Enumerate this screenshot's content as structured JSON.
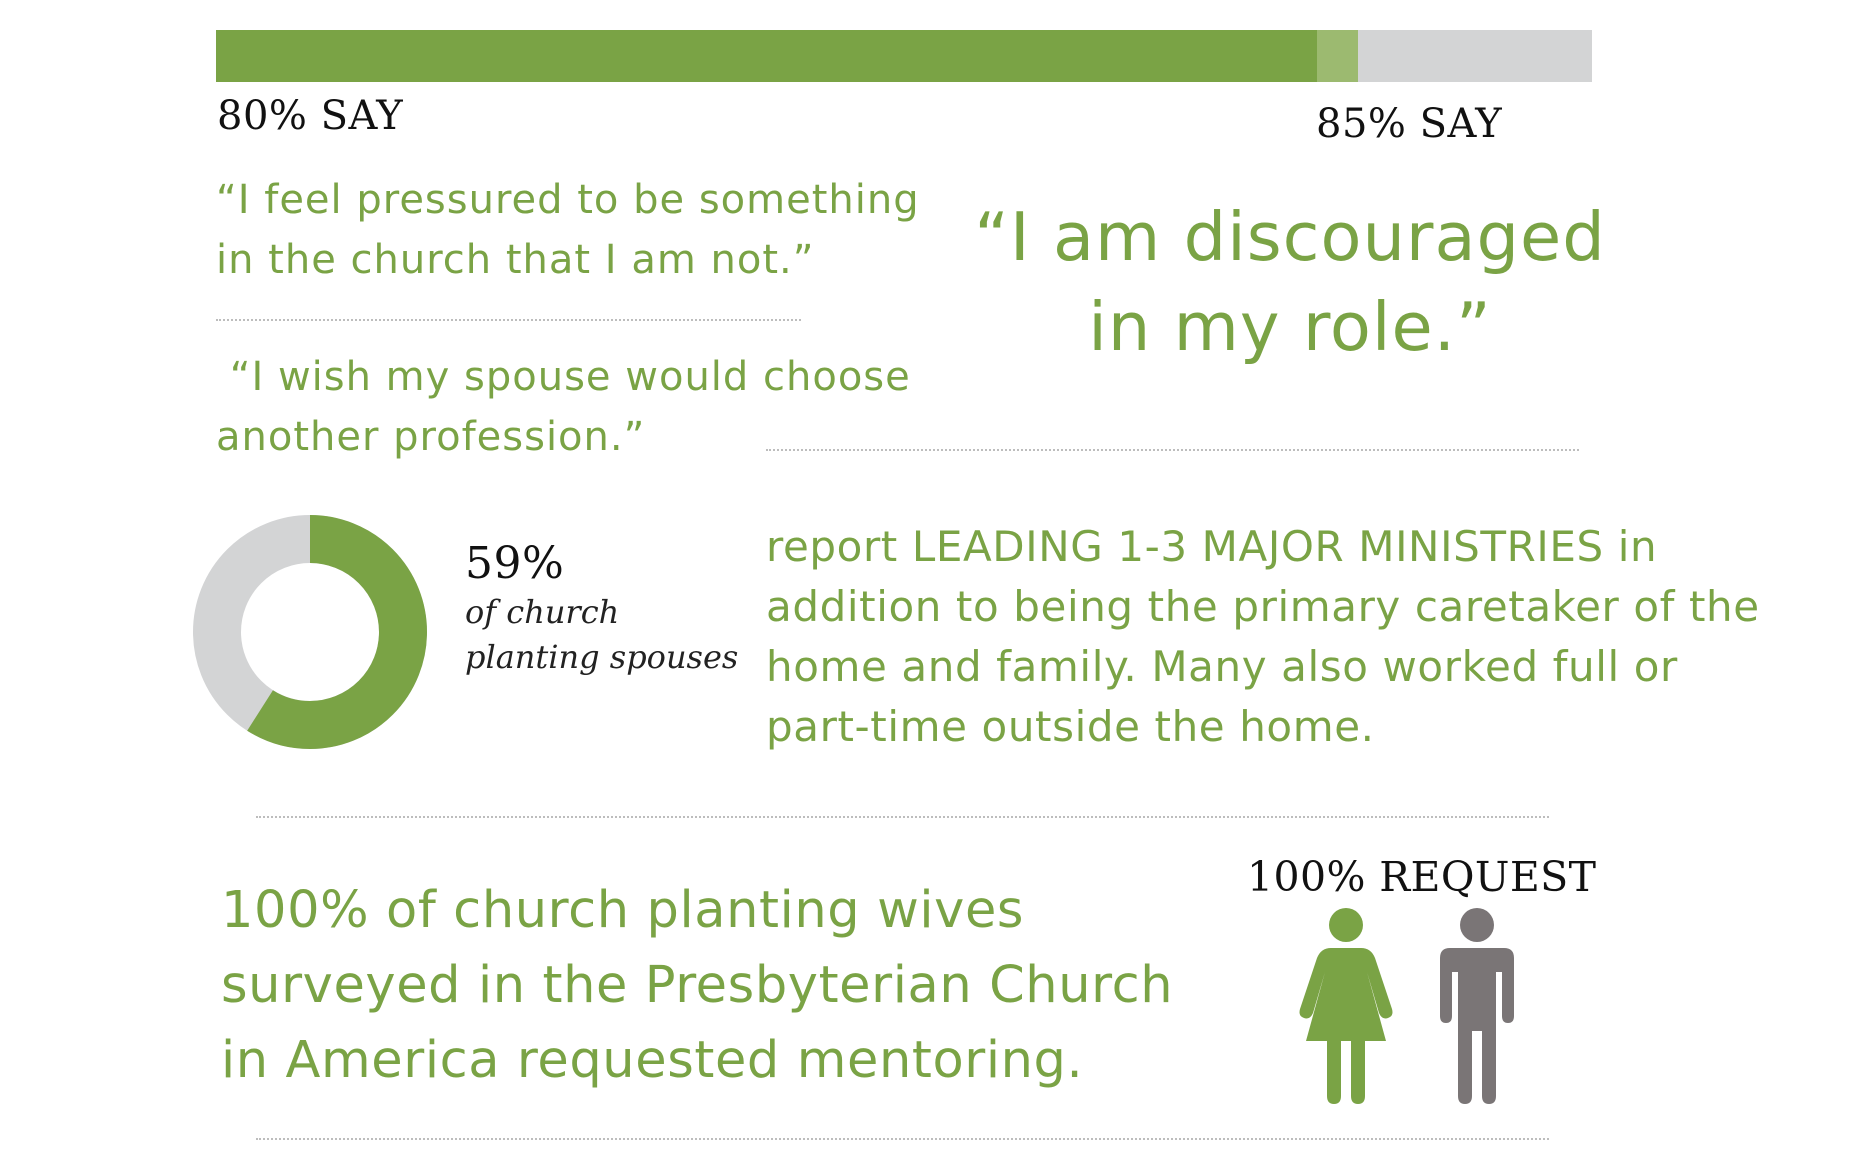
{
  "chart_data": [
    {
      "type": "bar",
      "values_percent": [
        80,
        85
      ],
      "labels": [
        "80% SAY",
        "85% SAY"
      ],
      "quotes": [
        "“I feel pressured to be something in the church that I am not.”",
        "“I wish my spouse would choose another profession.”",
        "“I am discouraged in my role.”"
      ]
    },
    {
      "type": "pie",
      "donut": true,
      "value_percent": 59,
      "value_label": "59%",
      "caption_line1": "of church",
      "caption_line2": "planting spouses",
      "description_parts": [
        "report ",
        "LEADING 1-3 MAJOR MINISTRIES",
        " in addition to being the primary caretaker of the home and family. Many also worked full or part-time outside the home."
      ]
    }
  ],
  "bar": {
    "label_80": "80% SAY",
    "label_85": "85% SAY",
    "fill_fraction": 0.8,
    "extra_fraction": 0.05
  },
  "quotes": {
    "q1_line1": "“I feel pressured to be something",
    "q1_line2": "in the church that I am not.”",
    "q2_line1": " “I wish my spouse would choose",
    "q2_line2": "another profession.”",
    "q3_line1": "“I am discouraged",
    "q3_line2": "in my role.”"
  },
  "donut": {
    "percent": 59,
    "label": "59%",
    "caption_line1": "of church",
    "caption_line2": "planting spouses"
  },
  "ministries": {
    "line1_pre": "report ",
    "line1_caps": "LEADING 1-3 MAJOR MINISTRIES",
    "line1_post": " in",
    "line2": "addition to being the primary caretaker of the",
    "line3": "home and family. Many also worked full or",
    "line4": "part-time outside the home."
  },
  "mentoring": {
    "line1": "100% of church planting wives",
    "line2": "surveyed in the Presbyterian Church",
    "line3": "in America requested mentoring.",
    "request_label": "100% REQUEST",
    "percent": 100
  },
  "icons": {
    "woman": "woman-figure-icon",
    "man": "man-figure-icon"
  },
  "colors": {
    "green": "#7aa345",
    "light_green": "#9cba70",
    "gray": "#d3d4d5",
    "dark_gray": "#7a7576"
  }
}
